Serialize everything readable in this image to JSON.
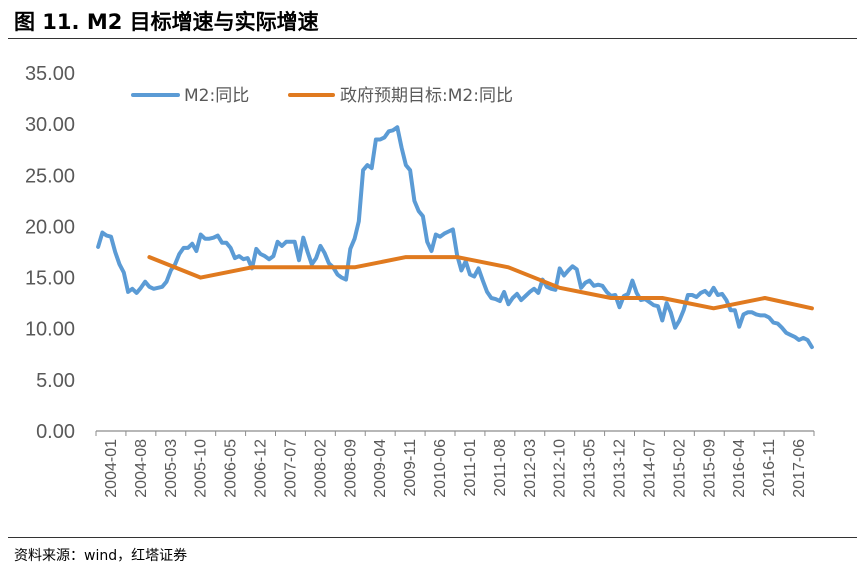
{
  "figure": {
    "title": "图 11. M2 目标增速与实际增速",
    "source": "资料来源：wind，红塔证券"
  },
  "colors": {
    "m2": "#5B9BD5",
    "target": "#E07A1F",
    "axis": "#595959",
    "rule": "#333333"
  },
  "chart_data": {
    "type": "line",
    "title": "",
    "xlabel": "",
    "ylabel": "",
    "ylim": [
      0,
      35
    ],
    "yticks": [
      0,
      5,
      10,
      15,
      20,
      25,
      30,
      35
    ],
    "yticklabels": [
      "0.00",
      "5.00",
      "10.00",
      "15.00",
      "20.00",
      "25.00",
      "30.00",
      "35.00"
    ],
    "xlabels": [
      "2004-01",
      "2004-08",
      "2005-03",
      "2005-10",
      "2006-05",
      "2006-12",
      "2007-07",
      "2008-02",
      "2008-09",
      "2009-04",
      "2009-11",
      "2010-06",
      "2011-01",
      "2011-08",
      "2012-03",
      "2012-10",
      "2013-05",
      "2013-12",
      "2014-07",
      "2015-02",
      "2015-09",
      "2016-04",
      "2016-11",
      "2017-06"
    ],
    "x_start": "2004-01",
    "x_end": "2017-12",
    "legend_position": "top",
    "series": [
      {
        "name": "M2:同比",
        "key": "m2",
        "points": [
          [
            0,
            18.0
          ],
          [
            1,
            19.4
          ],
          [
            2,
            19.1
          ],
          [
            3,
            19.0
          ],
          [
            4,
            17.5
          ],
          [
            5,
            16.3
          ],
          [
            6,
            15.5
          ],
          [
            7,
            13.6
          ],
          [
            8,
            13.9
          ],
          [
            9,
            13.5
          ],
          [
            10,
            14.0
          ],
          [
            11,
            14.6
          ],
          [
            12,
            14.1
          ],
          [
            13,
            13.9
          ],
          [
            14,
            14.0
          ],
          [
            15,
            14.1
          ],
          [
            16,
            14.6
          ],
          [
            17,
            15.7
          ],
          [
            18,
            16.3
          ],
          [
            19,
            17.3
          ],
          [
            20,
            17.9
          ],
          [
            21,
            17.9
          ],
          [
            22,
            18.3
          ],
          [
            23,
            17.6
          ],
          [
            24,
            19.2
          ],
          [
            25,
            18.8
          ],
          [
            26,
            18.8
          ],
          [
            27,
            18.9
          ],
          [
            28,
            19.1
          ],
          [
            29,
            18.4
          ],
          [
            30,
            18.4
          ],
          [
            31,
            17.9
          ],
          [
            32,
            16.9
          ],
          [
            33,
            17.1
          ],
          [
            34,
            16.8
          ],
          [
            35,
            16.9
          ],
          [
            36,
            15.9
          ],
          [
            37,
            17.8
          ],
          [
            38,
            17.3
          ],
          [
            39,
            17.1
          ],
          [
            40,
            16.8
          ],
          [
            41,
            17.1
          ],
          [
            42,
            18.5
          ],
          [
            43,
            18.1
          ],
          [
            44,
            18.5
          ],
          [
            45,
            18.5
          ],
          [
            46,
            18.5
          ],
          [
            47,
            16.7
          ],
          [
            48,
            18.9
          ],
          [
            49,
            17.5
          ],
          [
            50,
            16.3
          ],
          [
            51,
            16.9
          ],
          [
            52,
            18.1
          ],
          [
            53,
            17.4
          ],
          [
            54,
            16.4
          ],
          [
            55,
            16.0
          ],
          [
            56,
            15.3
          ],
          [
            57,
            15.0
          ],
          [
            58,
            14.8
          ],
          [
            59,
            17.8
          ],
          [
            60,
            18.8
          ],
          [
            61,
            20.5
          ],
          [
            62,
            25.5
          ],
          [
            63,
            26.0
          ],
          [
            64,
            25.7
          ],
          [
            65,
            28.5
          ],
          [
            66,
            28.5
          ],
          [
            67,
            28.7
          ],
          [
            68,
            29.3
          ],
          [
            69,
            29.4
          ],
          [
            70,
            29.7
          ],
          [
            71,
            27.7
          ],
          [
            72,
            26.0
          ],
          [
            73,
            25.5
          ],
          [
            74,
            22.5
          ],
          [
            75,
            21.5
          ],
          [
            76,
            21.0
          ],
          [
            77,
            18.5
          ],
          [
            78,
            17.6
          ],
          [
            79,
            19.2
          ],
          [
            80,
            19.0
          ],
          [
            81,
            19.3
          ],
          [
            82,
            19.5
          ],
          [
            83,
            19.7
          ],
          [
            84,
            17.2
          ],
          [
            85,
            15.7
          ],
          [
            86,
            16.6
          ],
          [
            87,
            15.3
          ],
          [
            88,
            15.1
          ],
          [
            89,
            15.9
          ],
          [
            90,
            14.7
          ],
          [
            91,
            13.6
          ],
          [
            92,
            13.0
          ],
          [
            93,
            12.9
          ],
          [
            94,
            12.7
          ],
          [
            95,
            13.6
          ],
          [
            96,
            12.4
          ],
          [
            97,
            13.0
          ],
          [
            98,
            13.4
          ],
          [
            99,
            12.8
          ],
          [
            100,
            13.2
          ],
          [
            101,
            13.6
          ],
          [
            102,
            13.9
          ],
          [
            103,
            13.5
          ],
          [
            104,
            14.8
          ],
          [
            105,
            14.1
          ],
          [
            106,
            13.9
          ],
          [
            107,
            13.8
          ],
          [
            108,
            15.9
          ],
          [
            109,
            15.2
          ],
          [
            110,
            15.7
          ],
          [
            111,
            16.1
          ],
          [
            112,
            15.8
          ],
          [
            113,
            14.0
          ],
          [
            114,
            14.5
          ],
          [
            115,
            14.7
          ],
          [
            116,
            14.2
          ],
          [
            117,
            14.3
          ],
          [
            118,
            14.2
          ],
          [
            119,
            13.6
          ],
          [
            120,
            13.2
          ],
          [
            121,
            13.3
          ],
          [
            122,
            12.1
          ],
          [
            123,
            13.2
          ],
          [
            124,
            13.4
          ],
          [
            125,
            14.7
          ],
          [
            126,
            13.5
          ],
          [
            127,
            12.8
          ],
          [
            128,
            12.9
          ],
          [
            129,
            12.6
          ],
          [
            130,
            12.3
          ],
          [
            131,
            12.2
          ],
          [
            132,
            10.8
          ],
          [
            133,
            12.5
          ],
          [
            134,
            11.6
          ],
          [
            135,
            10.1
          ],
          [
            136,
            10.8
          ],
          [
            137,
            11.8
          ],
          [
            138,
            13.3
          ],
          [
            139,
            13.3
          ],
          [
            140,
            13.1
          ],
          [
            141,
            13.5
          ],
          [
            142,
            13.7
          ],
          [
            143,
            13.3
          ],
          [
            144,
            14.0
          ],
          [
            145,
            13.3
          ],
          [
            146,
            13.4
          ],
          [
            147,
            12.8
          ],
          [
            148,
            11.8
          ],
          [
            149,
            11.8
          ],
          [
            150,
            10.2
          ],
          [
            151,
            11.4
          ],
          [
            152,
            11.6
          ],
          [
            153,
            11.6
          ],
          [
            154,
            11.4
          ],
          [
            155,
            11.3
          ],
          [
            156,
            11.3
          ],
          [
            157,
            11.1
          ],
          [
            158,
            10.6
          ],
          [
            159,
            10.5
          ],
          [
            160,
            10.1
          ],
          [
            161,
            9.6
          ],
          [
            162,
            9.4
          ],
          [
            163,
            9.2
          ],
          [
            164,
            8.9
          ],
          [
            165,
            9.1
          ],
          [
            166,
            8.9
          ],
          [
            167,
            8.2
          ]
        ]
      },
      {
        "name": "政府预期目标:M2:同比",
        "key": "target",
        "points": [
          [
            12,
            17
          ],
          [
            24,
            15
          ],
          [
            36,
            16
          ],
          [
            48,
            16
          ],
          [
            60,
            16
          ],
          [
            72,
            17
          ],
          [
            84,
            17
          ],
          [
            96,
            16
          ],
          [
            108,
            14
          ],
          [
            120,
            13
          ],
          [
            132,
            13
          ],
          [
            144,
            12
          ],
          [
            156,
            13
          ],
          [
            167,
            12
          ]
        ]
      }
    ]
  }
}
